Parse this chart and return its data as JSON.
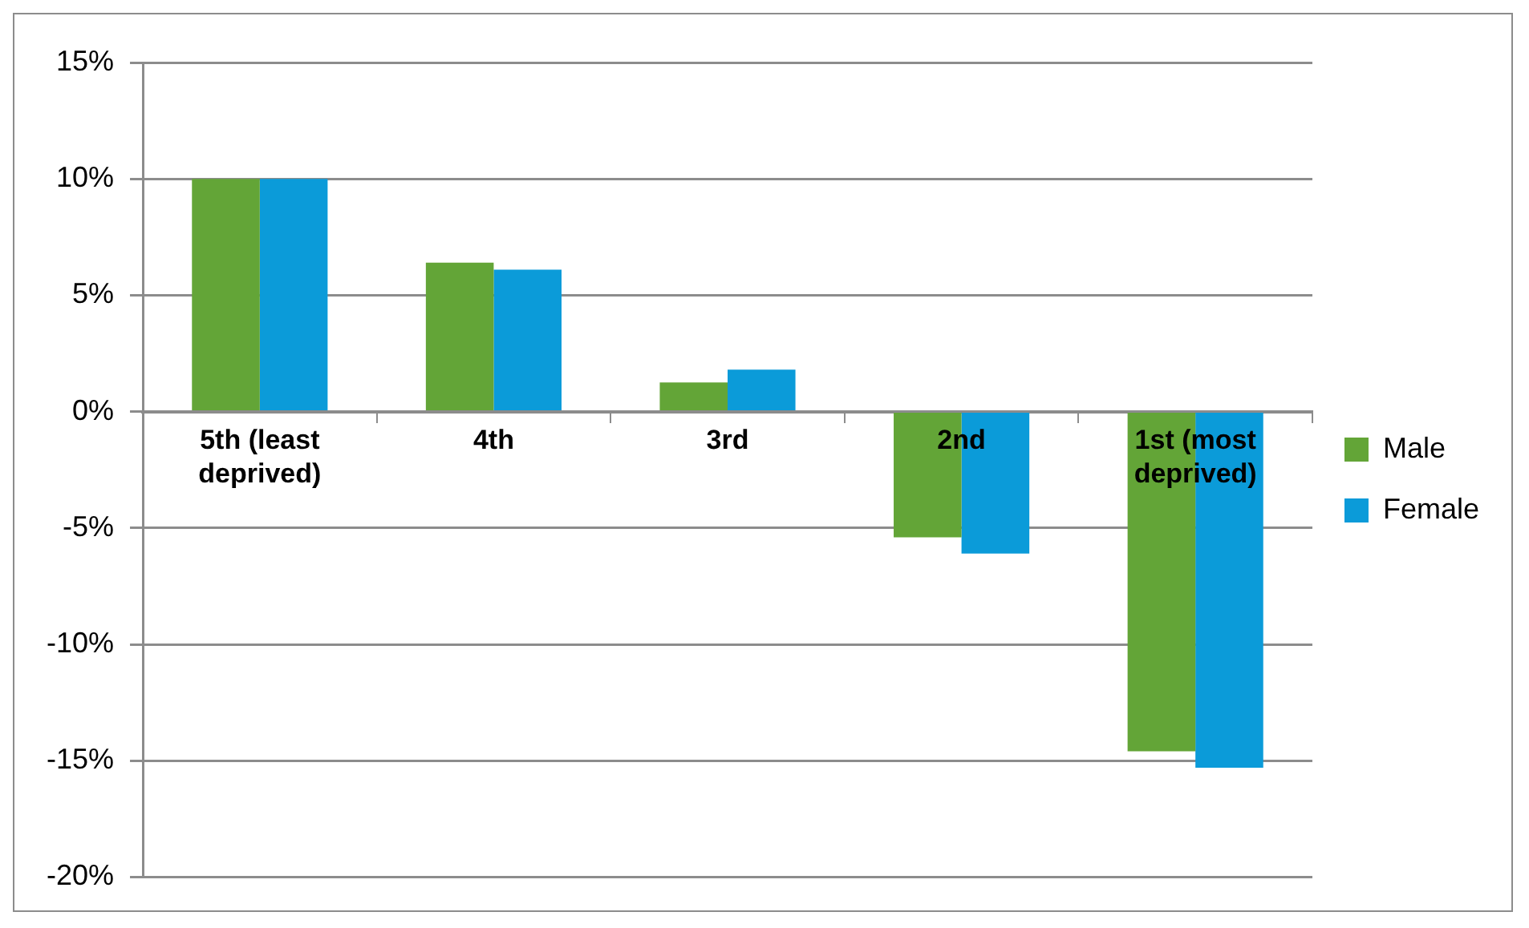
{
  "chart_data": {
    "type": "bar",
    "categories": [
      "5th (least deprived)",
      "4th",
      "3rd",
      "2nd",
      "1st (most deprived)"
    ],
    "series": [
      {
        "name": "Male",
        "color": "#63a537",
        "values": [
          10,
          6.4,
          1.25,
          -5.4,
          -14.6
        ]
      },
      {
        "name": "Female",
        "color": "#0b9bd9",
        "values": [
          10,
          6.1,
          1.8,
          -6.1,
          -15.3
        ]
      }
    ],
    "ylim": [
      -20,
      15
    ],
    "yticks": [
      {
        "value": -20,
        "label": "-20%"
      },
      {
        "value": -15,
        "label": "-15%"
      },
      {
        "value": -10,
        "label": "-10%"
      },
      {
        "value": -5,
        "label": "-5%"
      },
      {
        "value": 0,
        "label": "0%"
      },
      {
        "value": 5,
        "label": "5%"
      },
      {
        "value": 10,
        "label": "10%"
      },
      {
        "value": 15,
        "label": "15%"
      }
    ],
    "grid": "y",
    "legend": "right"
  }
}
